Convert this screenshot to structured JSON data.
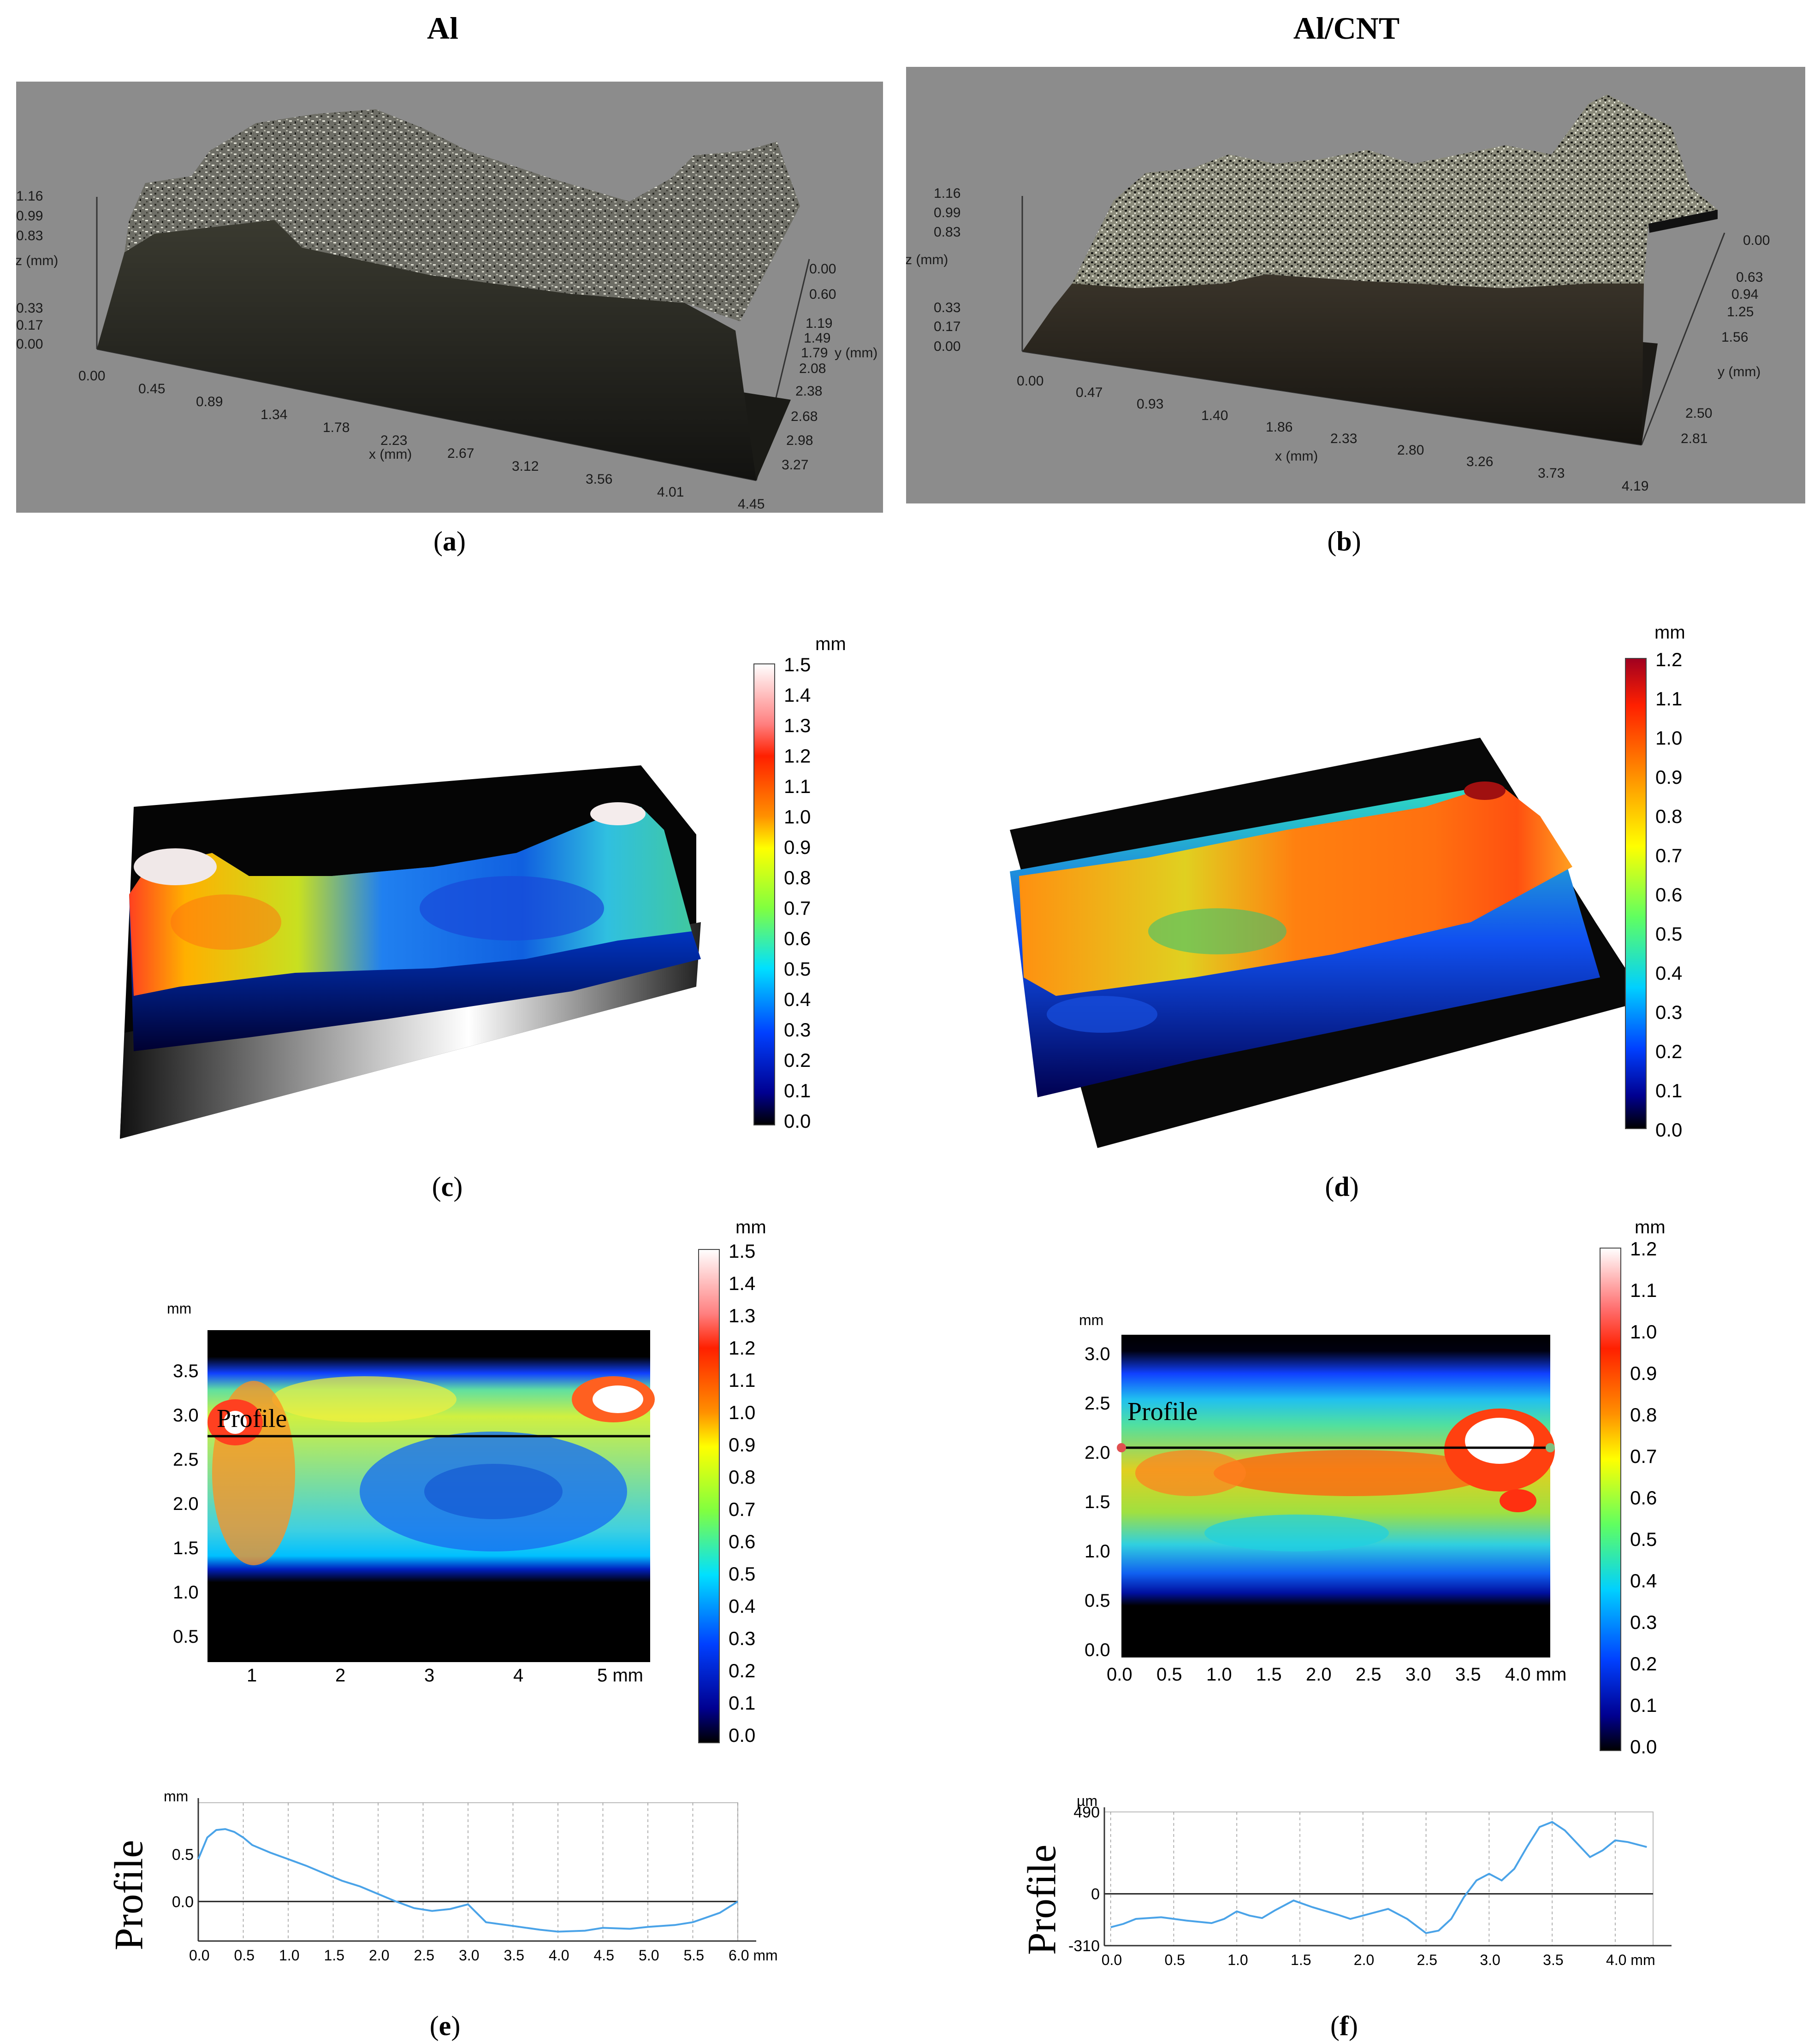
{
  "columns": {
    "left_title": "Al",
    "right_title": "Al/CNT"
  },
  "captions": {
    "a": "a",
    "b": "b",
    "c": "c",
    "d": "d",
    "e": "e",
    "f": "f"
  },
  "panel_a": {
    "z_ticks": [
      "1.16",
      "0.99",
      "0.83",
      "0.33",
      "0.17",
      "0.00"
    ],
    "z_label": "z (mm)",
    "x_ticks": [
      "0.00",
      "0.45",
      "0.89",
      "1.34",
      "1.78",
      "2.23",
      "2.67",
      "3.12",
      "3.56",
      "4.01",
      "4.45"
    ],
    "x_label": "x (mm)",
    "y_ticks": [
      "0.00",
      "0.60",
      "1.19",
      "1.49",
      "1.79",
      "2.08",
      "2.38",
      "2.68",
      "2.98",
      "3.27"
    ],
    "y_label": "y (mm)"
  },
  "panel_b": {
    "z_ticks": [
      "1.16",
      "0.99",
      "0.83",
      "0.33",
      "0.17",
      "0.00"
    ],
    "z_label": "z (mm)",
    "x_ticks": [
      "0.00",
      "0.47",
      "0.93",
      "1.40",
      "1.86",
      "2.33",
      "2.80",
      "3.26",
      "3.73",
      "4.19"
    ],
    "x_label": "x (mm)",
    "y_ticks": [
      "0.00",
      "0.63",
      "0.94",
      "1.25",
      "1.56",
      "2.50",
      "2.81"
    ],
    "y_label": "y (mm)"
  },
  "colorbar_c": {
    "unit": "mm",
    "ticks": [
      "1.5",
      "1.4",
      "1.3",
      "1.2",
      "1.1",
      "1.0",
      "0.9",
      "0.8",
      "0.7",
      "0.6",
      "0.5",
      "0.4",
      "0.3",
      "0.2",
      "0.1",
      "0.0"
    ]
  },
  "colorbar_d": {
    "unit": "mm",
    "ticks": [
      "1.2",
      "1.1",
      "1.0",
      "0.9",
      "0.8",
      "0.7",
      "0.6",
      "0.5",
      "0.4",
      "0.3",
      "0.2",
      "0.1",
      "0.0"
    ]
  },
  "colorbar_e": {
    "unit": "mm",
    "ticks": [
      "1.5",
      "1.4",
      "1.3",
      "1.2",
      "1.1",
      "1.0",
      "0.9",
      "0.8",
      "0.7",
      "0.6",
      "0.5",
      "0.4",
      "0.3",
      "0.2",
      "0.1",
      "0.0"
    ]
  },
  "colorbar_f": {
    "unit": "mm",
    "ticks": [
      "1.2",
      "1.1",
      "1.0",
      "0.9",
      "0.8",
      "0.7",
      "0.6",
      "0.5",
      "0.4",
      "0.3",
      "0.2",
      "0.1",
      "0.0"
    ]
  },
  "map_e": {
    "y_unit": "mm",
    "y_ticks": [
      "3.5",
      "3.0",
      "2.5",
      "2.0",
      "1.5",
      "1.0",
      "0.5"
    ],
    "x_ticks": [
      "1",
      "2",
      "3",
      "4",
      "5 mm"
    ],
    "profile_label": "Profile"
  },
  "map_f": {
    "y_unit": "mm",
    "y_ticks": [
      "3.0",
      "2.5",
      "2.0",
      "1.5",
      "1.0",
      "0.5",
      "0.0"
    ],
    "x_ticks": [
      "0.0",
      "0.5",
      "1.0",
      "1.5",
      "2.0",
      "2.5",
      "3.0",
      "3.5",
      "4.0 mm"
    ],
    "profile_label": "Profile"
  },
  "chart_data": [
    {
      "type": "line",
      "panel": "e",
      "ylabel": "Profile",
      "y_unit": "mm",
      "x_unit": "mm",
      "y_ticks": [
        "0.5",
        "0.0"
      ],
      "x_ticks": [
        "0.0",
        "0.5",
        "1.0",
        "1.5",
        "2.0",
        "2.5",
        "3.0",
        "3.5",
        "4.0",
        "4.5",
        "5.0",
        "5.5",
        "6.0 mm"
      ],
      "xlim": [
        0,
        6.0
      ],
      "ylim": [
        -0.42,
        1.05
      ],
      "x": [
        0.0,
        0.1,
        0.2,
        0.3,
        0.4,
        0.5,
        0.6,
        0.8,
        1.0,
        1.2,
        1.4,
        1.6,
        1.8,
        2.0,
        2.2,
        2.4,
        2.6,
        2.8,
        3.0,
        3.2,
        3.5,
        3.8,
        4.0,
        4.3,
        4.5,
        4.8,
        5.0,
        5.3,
        5.5,
        5.8,
        6.0
      ],
      "y": [
        0.45,
        0.68,
        0.76,
        0.77,
        0.74,
        0.68,
        0.6,
        0.52,
        0.45,
        0.38,
        0.3,
        0.22,
        0.16,
        0.08,
        0.0,
        -0.07,
        -0.1,
        -0.08,
        -0.03,
        -0.22,
        -0.26,
        -0.3,
        -0.32,
        -0.31,
        -0.28,
        -0.29,
        -0.27,
        -0.25,
        -0.22,
        -0.12,
        0.0
      ]
    },
    {
      "type": "line",
      "panel": "f",
      "ylabel": "Profile",
      "y_unit": "µm",
      "x_unit": "mm",
      "y_ticks": [
        "490",
        "0",
        "-310"
      ],
      "x_ticks": [
        "0.0",
        "0.5",
        "1.0",
        "1.5",
        "2.0",
        "2.5",
        "3.0",
        "3.5",
        "4.0 mm"
      ],
      "xlim": [
        -0.05,
        4.3
      ],
      "ylim": [
        -310,
        490
      ],
      "x": [
        0.0,
        0.1,
        0.2,
        0.4,
        0.6,
        0.8,
        0.9,
        1.0,
        1.1,
        1.2,
        1.3,
        1.45,
        1.6,
        1.8,
        1.9,
        2.0,
        2.2,
        2.35,
        2.5,
        2.6,
        2.7,
        2.8,
        2.9,
        3.0,
        3.1,
        3.2,
        3.3,
        3.4,
        3.5,
        3.6,
        3.7,
        3.8,
        3.9,
        4.0,
        4.1,
        4.2,
        4.25
      ],
      "y": [
        -200,
        -180,
        -150,
        -140,
        -160,
        -175,
        -150,
        -105,
        -130,
        -145,
        -100,
        -40,
        -80,
        -125,
        -150,
        -130,
        -90,
        -150,
        -235,
        -220,
        -150,
        -20,
        80,
        120,
        80,
        150,
        280,
        400,
        430,
        380,
        300,
        220,
        260,
        320,
        310,
        290,
        280
      ]
    }
  ]
}
